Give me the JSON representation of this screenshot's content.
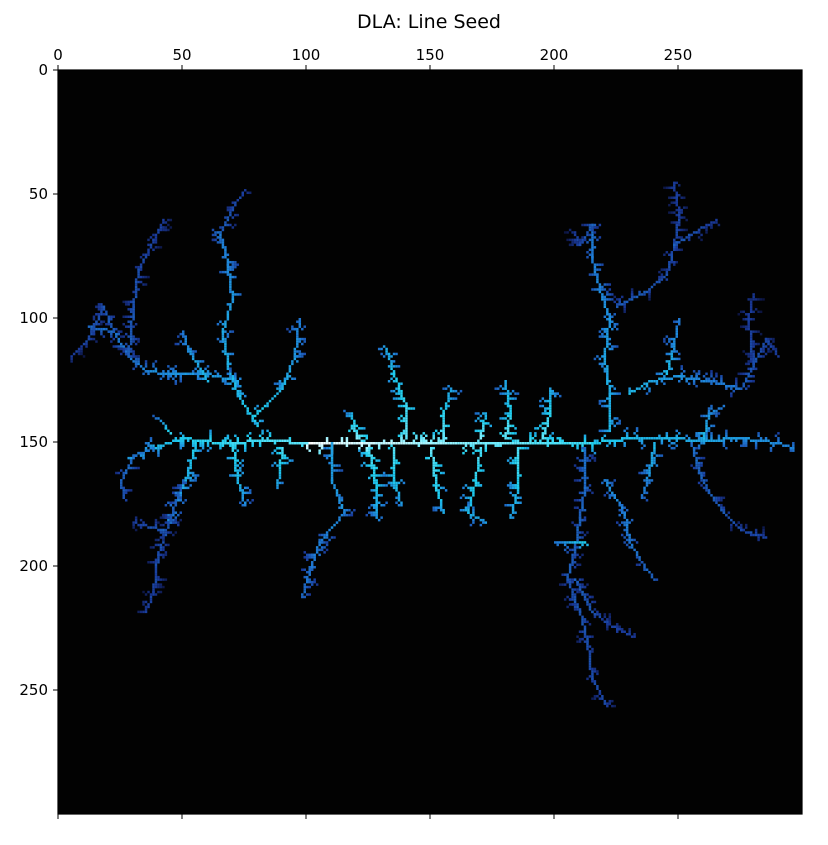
{
  "chart_data": {
    "type": "heatmap",
    "title": "DLA: Line Seed",
    "xlabel": "",
    "ylabel": "",
    "xlim": [
      0,
      300
    ],
    "ylim": [
      300,
      0
    ],
    "x_axis_position": "top",
    "x_ticks": [
      0,
      50,
      100,
      150,
      200,
      250
    ],
    "y_ticks": [
      0,
      50,
      100,
      150,
      200,
      250
    ],
    "grid": false,
    "background": "#020202",
    "colormap": [
      "#0c1440",
      "#1a3a9a",
      "#1f7fd8",
      "#1fd0f0",
      "#7ff0ff",
      "#ffffff"
    ],
    "seed_line": {
      "y": 150,
      "x_start": 100,
      "x_end": 215
    },
    "branches": [
      {
        "name": "seed-line",
        "points": [
          [
            100,
            150
          ],
          [
            215,
            150
          ]
        ],
        "level": 1.0
      },
      {
        "name": "left-main",
        "points": [
          [
            100,
            150
          ],
          [
            85,
            149
          ],
          [
            65,
            150
          ],
          [
            50,
            148
          ],
          [
            38,
            152
          ],
          [
            28,
            156
          ]
        ],
        "level": 0.75
      },
      {
        "name": "left-upper",
        "points": [
          [
            80,
            143
          ],
          [
            72,
            130
          ],
          [
            68,
            118
          ],
          [
            66,
            105
          ],
          [
            70,
            92
          ],
          [
            68,
            78
          ],
          [
            65,
            65
          ]
        ],
        "level": 0.6
      },
      {
        "name": "left-upper-tip",
        "points": [
          [
            65,
            65
          ],
          [
            70,
            55
          ],
          [
            75,
            48
          ]
        ],
        "level": 0.3
      },
      {
        "name": "left-upper-side",
        "points": [
          [
            72,
            125
          ],
          [
            60,
            122
          ],
          [
            45,
            122
          ],
          [
            35,
            121
          ],
          [
            28,
            115
          ],
          [
            22,
            105
          ],
          [
            12,
            103
          ]
        ],
        "level": 0.5
      },
      {
        "name": "left-far-upper",
        "points": [
          [
            28,
            115
          ],
          [
            30,
            95
          ],
          [
            32,
            80
          ],
          [
            38,
            68
          ],
          [
            42,
            60
          ]
        ],
        "level": 0.3
      },
      {
        "name": "left-far-upper-2",
        "points": [
          [
            22,
            105
          ],
          [
            18,
            95
          ],
          [
            12,
            108
          ],
          [
            5,
            115
          ]
        ],
        "level": 0.3
      },
      {
        "name": "left-mid-branch",
        "points": [
          [
            78,
            140
          ],
          [
            90,
            128
          ],
          [
            95,
            115
          ],
          [
            97,
            100
          ]
        ],
        "level": 0.6
      },
      {
        "name": "left-mid-branch-2",
        "points": [
          [
            60,
            125
          ],
          [
            52,
            112
          ],
          [
            50,
            105
          ]
        ],
        "level": 0.55
      },
      {
        "name": "left-lower",
        "points": [
          [
            55,
            150
          ],
          [
            52,
            162
          ],
          [
            48,
            172
          ],
          [
            44,
            182
          ]
        ],
        "level": 0.6
      },
      {
        "name": "left-lower-2",
        "points": [
          [
            50,
            165
          ],
          [
            45,
            180
          ],
          [
            40,
            195
          ],
          [
            38,
            210
          ],
          [
            35,
            218
          ]
        ],
        "level": 0.3
      },
      {
        "name": "left-lower-3",
        "points": [
          [
            42,
            185
          ],
          [
            30,
            182
          ]
        ],
        "level": 0.3
      },
      {
        "name": "left-lower-4",
        "points": [
          [
            70,
            150
          ],
          [
            72,
            165
          ],
          [
            75,
            175
          ]
        ],
        "level": 0.65
      },
      {
        "name": "left-lower-5",
        "points": [
          [
            90,
            152
          ],
          [
            88,
            168
          ]
        ],
        "level": 0.7
      },
      {
        "name": "left-far-left",
        "points": [
          [
            38,
            152
          ],
          [
            30,
            155
          ],
          [
            25,
            165
          ],
          [
            26,
            172
          ]
        ],
        "level": 0.4
      },
      {
        "name": "left-far-left-2",
        "points": [
          [
            45,
            146
          ],
          [
            40,
            140
          ]
        ],
        "level": 0.65
      },
      {
        "name": "center-low-1",
        "points": [
          [
            110,
            150
          ],
          [
            110,
            165
          ],
          [
            115,
            178
          ],
          [
            105,
            190
          ],
          [
            100,
            205
          ],
          [
            98,
            212
          ]
        ],
        "level": 0.5
      },
      {
        "name": "center-low-2",
        "points": [
          [
            125,
            152
          ],
          [
            128,
            168
          ],
          [
            128,
            180
          ]
        ],
        "level": 0.7
      },
      {
        "name": "center-low-3",
        "points": [
          [
            135,
            152
          ],
          [
            135,
            165
          ],
          [
            138,
            175
          ]
        ],
        "level": 0.7
      },
      {
        "name": "center-low-4",
        "points": [
          [
            150,
            152
          ],
          [
            152,
            168
          ],
          [
            155,
            178
          ]
        ],
        "level": 0.75
      },
      {
        "name": "center-low-5",
        "points": [
          [
            170,
            152
          ],
          [
            168,
            165
          ],
          [
            165,
            178
          ],
          [
            172,
            182
          ]
        ],
        "level": 0.7
      },
      {
        "name": "center-low-6",
        "points": [
          [
            185,
            152
          ],
          [
            185,
            168
          ],
          [
            182,
            180
          ]
        ],
        "level": 0.7
      },
      {
        "name": "center-up-1",
        "points": [
          [
            140,
            148
          ],
          [
            140,
            135
          ],
          [
            135,
            122
          ],
          [
            132,
            112
          ]
        ],
        "level": 0.75
      },
      {
        "name": "center-up-2",
        "points": [
          [
            155,
            148
          ],
          [
            155,
            138
          ],
          [
            158,
            128
          ]
        ],
        "level": 0.75
      },
      {
        "name": "center-up-3",
        "points": [
          [
            170,
            148
          ],
          [
            172,
            138
          ]
        ],
        "level": 0.8
      },
      {
        "name": "center-up-4",
        "points": [
          [
            180,
            148
          ],
          [
            182,
            138
          ],
          [
            180,
            125
          ]
        ],
        "level": 0.75
      },
      {
        "name": "center-up-5",
        "points": [
          [
            195,
            148
          ],
          [
            198,
            138
          ],
          [
            198,
            128
          ]
        ],
        "level": 0.75
      },
      {
        "name": "center-up-6",
        "points": [
          [
            120,
            148
          ],
          [
            118,
            138
          ]
        ],
        "level": 0.8
      },
      {
        "name": "right-main",
        "points": [
          [
            215,
            150
          ],
          [
            230,
            148
          ],
          [
            245,
            148
          ],
          [
            260,
            149
          ],
          [
            275,
            148
          ],
          [
            290,
            150
          ],
          [
            296,
            152
          ]
        ],
        "level": 0.6
      },
      {
        "name": "right-upper",
        "points": [
          [
            222,
            145
          ],
          [
            222,
            130
          ],
          [
            220,
            115
          ],
          [
            222,
            100
          ],
          [
            218,
            88
          ],
          [
            215,
            75
          ],
          [
            215,
            62
          ]
        ],
        "level": 0.55
      },
      {
        "name": "right-upper-tip",
        "points": [
          [
            215,
            62
          ],
          [
            210,
            70
          ],
          [
            208,
            65
          ]
        ],
        "level": 0.3
      },
      {
        "name": "right-upper-2",
        "points": [
          [
            225,
            95
          ],
          [
            238,
            88
          ],
          [
            245,
            82
          ],
          [
            248,
            70
          ],
          [
            250,
            58
          ],
          [
            248,
            45
          ]
        ],
        "level": 0.3
      },
      {
        "name": "right-upper-3",
        "points": [
          [
            248,
            70
          ],
          [
            258,
            64
          ],
          [
            265,
            60
          ]
        ],
        "level": 0.3
      },
      {
        "name": "right-upper-4",
        "points": [
          [
            230,
            130
          ],
          [
            238,
            125
          ],
          [
            250,
            123
          ],
          [
            262,
            125
          ],
          [
            275,
            128
          ]
        ],
        "level": 0.55
      },
      {
        "name": "right-upper-5",
        "points": [
          [
            245,
            122
          ],
          [
            248,
            110
          ],
          [
            250,
            100
          ]
        ],
        "level": 0.55
      },
      {
        "name": "right-far-right",
        "points": [
          [
            275,
            128
          ],
          [
            280,
            118
          ],
          [
            285,
            108
          ],
          [
            290,
            115
          ]
        ],
        "level": 0.3
      },
      {
        "name": "right-far-right-2",
        "points": [
          [
            280,
            118
          ],
          [
            278,
            100
          ],
          [
            280,
            90
          ]
        ],
        "level": 0.25
      },
      {
        "name": "right-lower",
        "points": [
          [
            212,
            152
          ],
          [
            212,
            168
          ],
          [
            210,
            180
          ],
          [
            208,
            192
          ],
          [
            205,
            205
          ],
          [
            210,
            218
          ],
          [
            213,
            230
          ],
          [
            215,
            245
          ],
          [
            220,
            255
          ]
        ],
        "level": 0.35
      },
      {
        "name": "right-lower-2",
        "points": [
          [
            212,
            190
          ],
          [
            200,
            190
          ]
        ],
        "level": 0.6
      },
      {
        "name": "right-lower-3",
        "points": [
          [
            220,
            165
          ],
          [
            228,
            178
          ],
          [
            230,
            190
          ],
          [
            235,
            198
          ],
          [
            240,
            205
          ]
        ],
        "level": 0.45
      },
      {
        "name": "right-lower-4",
        "points": [
          [
            208,
            205
          ],
          [
            215,
            218
          ],
          [
            225,
            225
          ],
          [
            232,
            228
          ]
        ],
        "level": 0.3
      },
      {
        "name": "right-lower-5",
        "points": [
          [
            255,
            150
          ],
          [
            258,
            162
          ],
          [
            262,
            170
          ],
          [
            268,
            178
          ],
          [
            275,
            185
          ],
          [
            285,
            188
          ]
        ],
        "level": 0.35
      },
      {
        "name": "right-lower-6",
        "points": [
          [
            240,
            150
          ],
          [
            238,
            162
          ],
          [
            235,
            172
          ]
        ],
        "level": 0.55
      },
      {
        "name": "right-upper-6",
        "points": [
          [
            260,
            148
          ],
          [
            262,
            138
          ],
          [
            268,
            135
          ]
        ],
        "level": 0.55
      }
    ]
  }
}
